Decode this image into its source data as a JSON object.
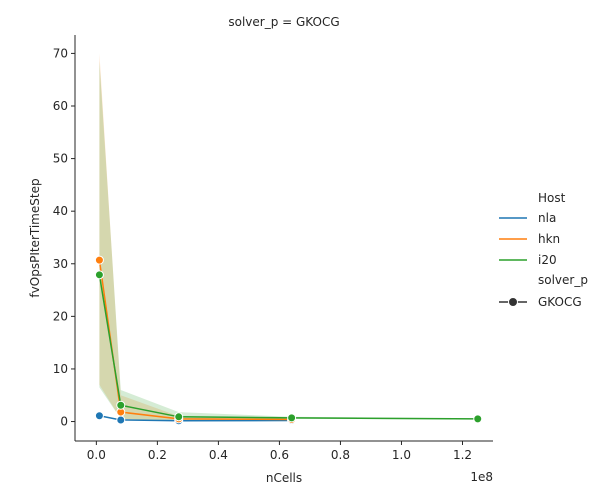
{
  "chart_data": {
    "type": "line",
    "title": "solver_p = GKOCG",
    "xlabel": "nCells",
    "ylabel": "fvOpsPIterTimeStep",
    "x_offset_label": "1e8",
    "x_scale": 100000000,
    "xlim": [
      -0.07,
      1.3
    ],
    "ylim": [
      -3.7,
      73.5
    ],
    "x_ticks": [
      0.0,
      0.2,
      0.4,
      0.6,
      0.8,
      1.0,
      1.2
    ],
    "x_tick_labels": [
      "0.0",
      "0.2",
      "0.4",
      "0.6",
      "0.8",
      "1.0",
      "1.2"
    ],
    "y_ticks": [
      0,
      10,
      20,
      30,
      40,
      50,
      60,
      70
    ],
    "y_tick_labels": [
      "0",
      "10",
      "20",
      "30",
      "40",
      "50",
      "60",
      "70"
    ],
    "grid": false,
    "legend": {
      "placement": "right",
      "hue_title": "Host",
      "style_title": "solver_p",
      "style_entry": "GKOCG"
    },
    "series": [
      {
        "name": "nla",
        "color": "#1f77b4",
        "x": [
          0.01,
          0.08,
          0.27,
          0.64
        ],
        "y": [
          1.1,
          0.3,
          0.15,
          0.2
        ],
        "band_low": [
          1.0,
          0.2,
          0.1,
          0.15
        ],
        "band_high": [
          1.2,
          0.4,
          0.2,
          0.25
        ]
      },
      {
        "name": "hkn",
        "color": "#ff7f0e",
        "x": [
          0.01,
          0.08,
          0.27,
          0.64
        ],
        "y": [
          30.7,
          1.8,
          0.5,
          0.4
        ],
        "band_low": [
          7.0,
          0.5,
          0.1,
          0.2
        ],
        "band_high": [
          70.0,
          5.0,
          1.0,
          0.6
        ]
      },
      {
        "name": "i20",
        "color": "#2ca02c",
        "x": [
          0.01,
          0.08,
          0.27,
          0.64,
          1.25
        ],
        "y": [
          27.9,
          3.1,
          0.9,
          0.7,
          0.5
        ],
        "band_low": [
          6.5,
          0.5,
          0.2,
          0.5,
          0.4
        ],
        "band_high": [
          68.5,
          6.0,
          1.8,
          0.9,
          0.6
        ]
      }
    ]
  }
}
